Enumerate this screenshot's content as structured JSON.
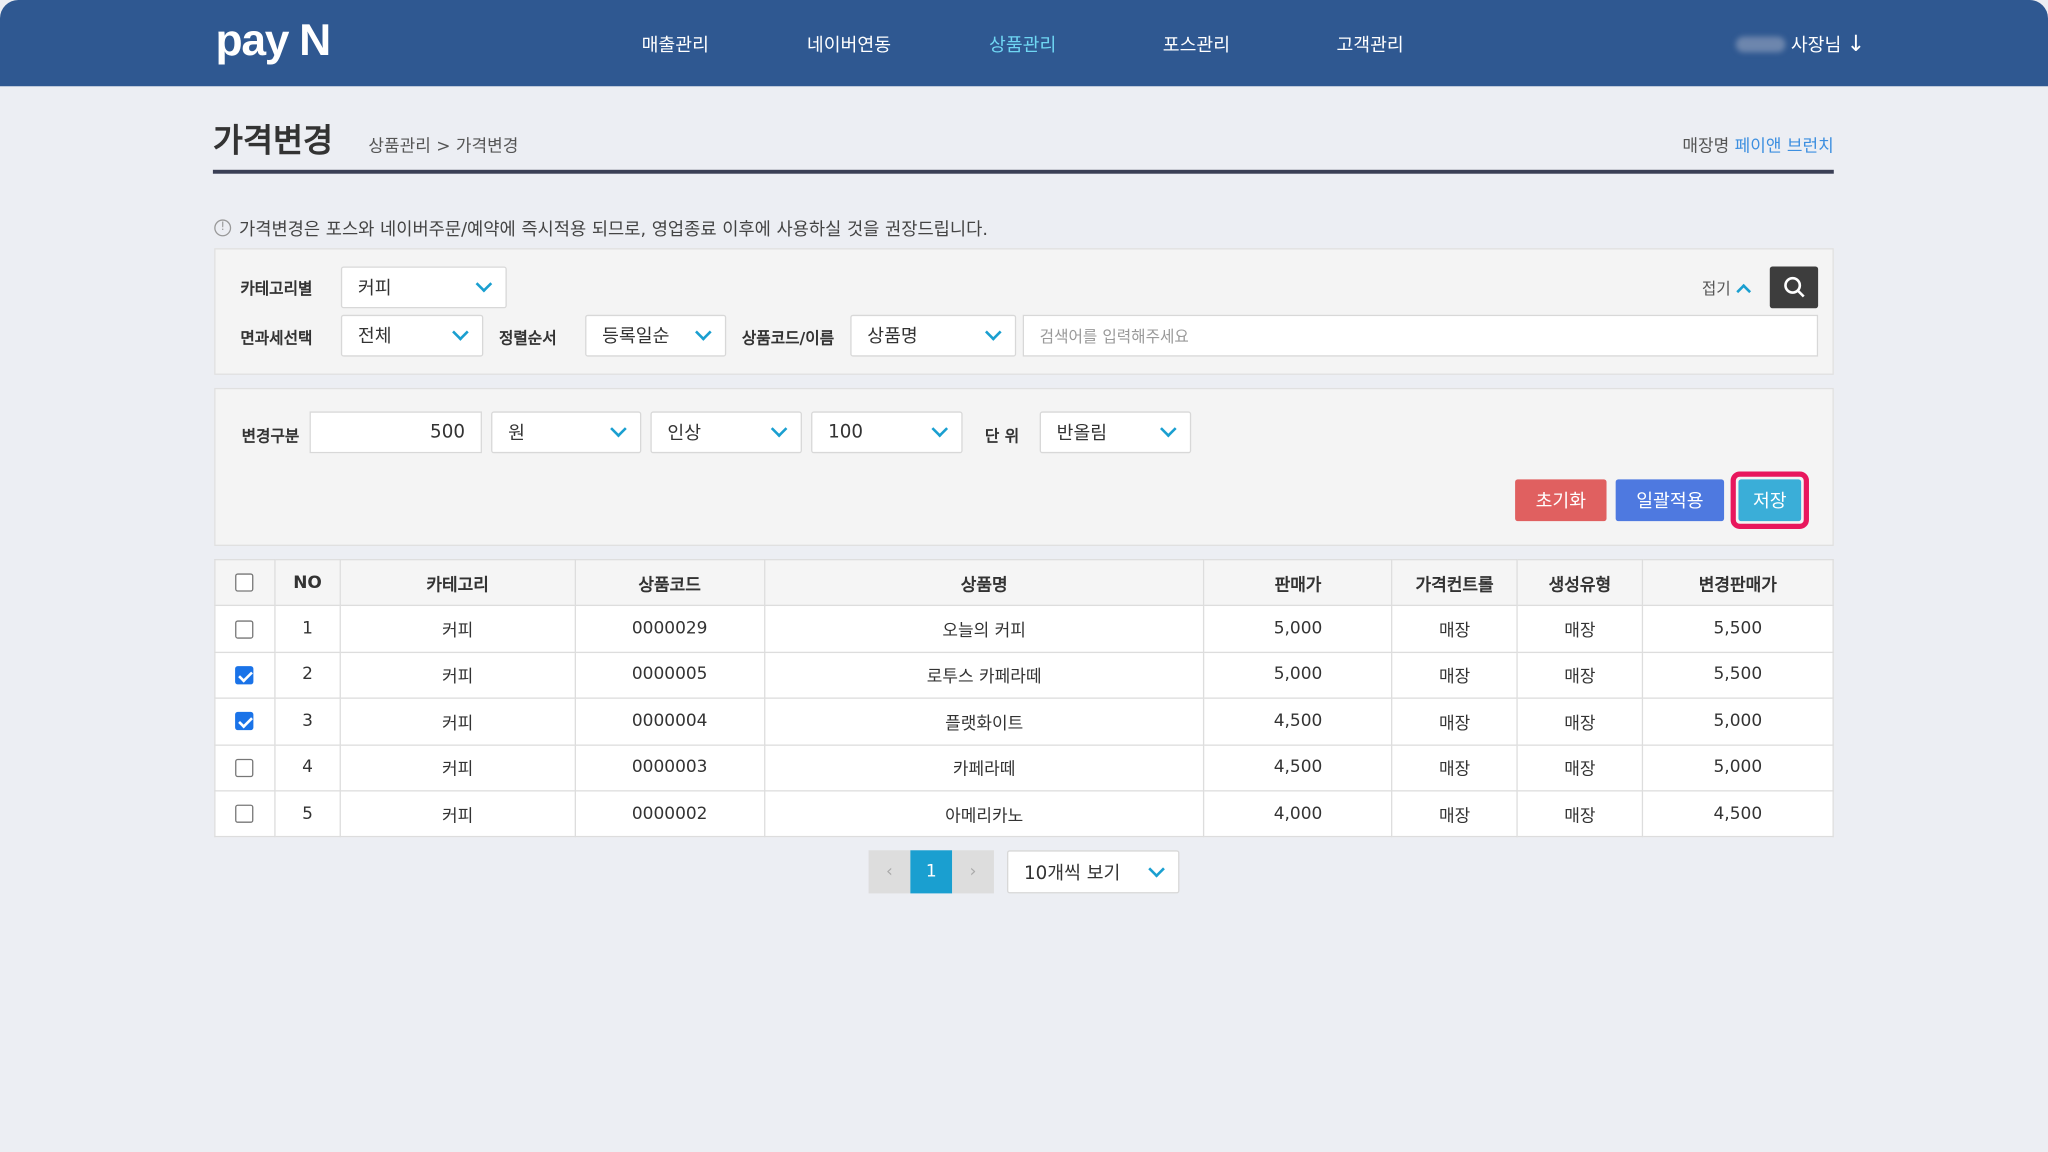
{
  "header": {
    "logo": "pay N",
    "nav": [
      "매출관리",
      "네이버연동",
      "상품관리",
      "포스관리",
      "고객관리"
    ],
    "active_nav": "상품관리",
    "user_suffix": "사장님"
  },
  "page": {
    "title": "가격변경",
    "breadcrumb": "상품관리 > 가격변경",
    "store_label": "매장명",
    "store_name": "페이앤 브런치",
    "notice": "가격변경은 포스와 네이버주문/예약에 즉시적용 되므로, 영업종료 이후에 사용하실 것을 권장드립니다."
  },
  "search": {
    "category_label": "카테고리별",
    "category_value": "커피",
    "tax_label": "면과세선택",
    "tax_value": "전체",
    "sort_label": "정렬순서",
    "sort_value": "등록일순",
    "code_label": "상품코드/이름",
    "code_value": "상품명",
    "placeholder": "검색어를 입력해주세요",
    "collapse_label": "접기"
  },
  "change": {
    "label": "변경구분",
    "amount": "500",
    "unit_type": "원",
    "direction": "인상",
    "step": "100",
    "unit_label": "단 위",
    "rounding": "반올림",
    "reset": "초기화",
    "apply_all": "일괄적용",
    "save": "저장"
  },
  "colors": {
    "header": "#2f5891",
    "active_nav": "#6fd6f3",
    "reset": "#e06060",
    "apply": "#4e79e0",
    "save": "#3aaed8",
    "highlight": "#e8175d"
  },
  "table": {
    "columns": [
      "NO",
      "카테고리",
      "상품코드",
      "상품명",
      "판매가",
      "가격컨트롤",
      "생성유형",
      "변경판매가"
    ],
    "rows": [
      {
        "checked": false,
        "cells": [
          "1",
          "커피",
          "0000029",
          "오늘의 커피",
          "5,000",
          "매장",
          "매장",
          "5,500"
        ]
      },
      {
        "checked": true,
        "cells": [
          "2",
          "커피",
          "0000005",
          "로투스 카페라떼",
          "5,000",
          "매장",
          "매장",
          "5,500"
        ]
      },
      {
        "checked": true,
        "cells": [
          "3",
          "커피",
          "0000004",
          "플랫화이트",
          "4,500",
          "매장",
          "매장",
          "5,000"
        ]
      },
      {
        "checked": false,
        "cells": [
          "4",
          "커피",
          "0000003",
          "카페라떼",
          "4,500",
          "매장",
          "매장",
          "5,000"
        ]
      },
      {
        "checked": false,
        "cells": [
          "5",
          "커피",
          "0000002",
          "아메리카노",
          "4,000",
          "매장",
          "매장",
          "4,500"
        ]
      }
    ]
  },
  "pagination": {
    "current": "1",
    "page_size": "10개씩 보기"
  }
}
